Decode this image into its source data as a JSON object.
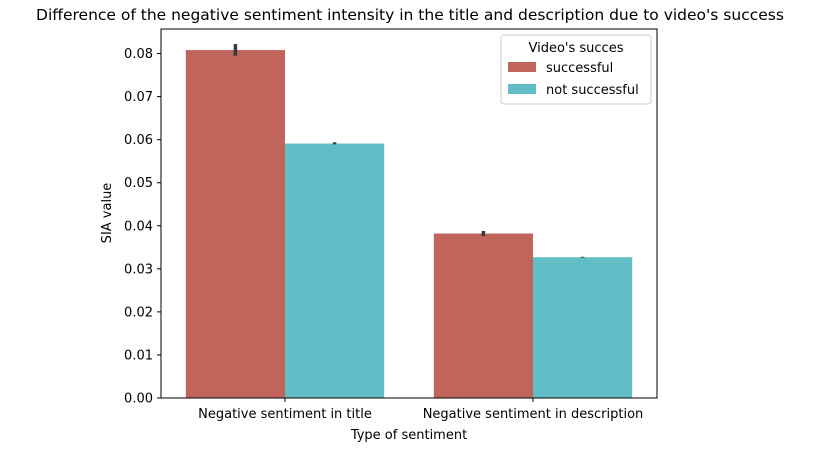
{
  "chart_data": {
    "type": "bar",
    "title": "Difference of the negative sentiment intensity in the title and description due to video's success",
    "xlabel": "Type of sentiment",
    "ylabel": "SIA value",
    "categories": [
      "Negative sentiment in title",
      "Negative sentiment in description"
    ],
    "series": [
      {
        "name": "successful",
        "color": "#c0645c",
        "values": [
          0.0808,
          0.0382
        ],
        "error": [
          [
            0.0795,
            0.0822
          ],
          [
            0.0376,
            0.0388
          ]
        ]
      },
      {
        "name": "not successful",
        "color": "#62bec6",
        "values": [
          0.0591,
          0.0327
        ],
        "error": [
          [
            0.0589,
            0.0594
          ],
          [
            0.0326,
            0.0328
          ]
        ]
      }
    ],
    "ylim": [
      0,
      0.0857
    ],
    "yticks": [
      0.0,
      0.01,
      0.02,
      0.03,
      0.04,
      0.05,
      0.06,
      0.07,
      0.08
    ],
    "ytick_labels": [
      "0.00",
      "0.01",
      "0.02",
      "0.03",
      "0.04",
      "0.05",
      "0.06",
      "0.07",
      "0.08"
    ],
    "legend": {
      "title": "Video's succes",
      "position": "top-right"
    },
    "grid": false
  }
}
